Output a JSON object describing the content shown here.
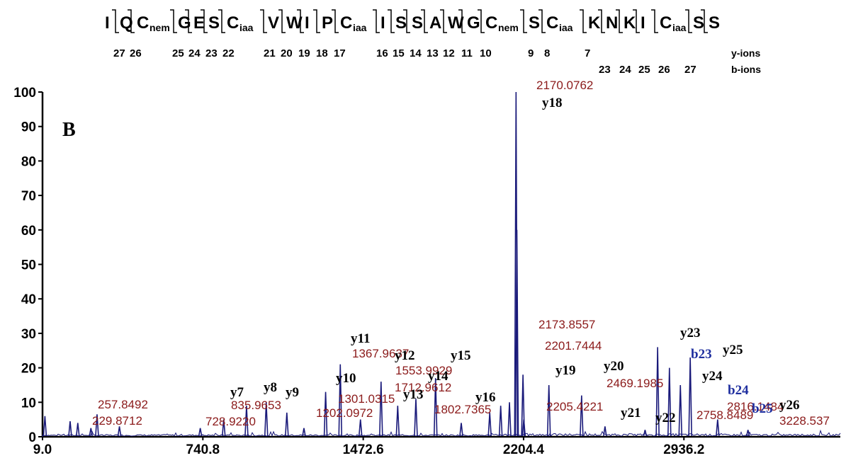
{
  "sequence": {
    "residues": [
      {
        "aa": "I",
        "sub": ""
      },
      {
        "aa": "Q",
        "sub": ""
      },
      {
        "aa": "C",
        "sub": "nem"
      },
      {
        "aa": "G",
        "sub": ""
      },
      {
        "aa": "E",
        "sub": ""
      },
      {
        "aa": "S",
        "sub": ""
      },
      {
        "aa": "C",
        "sub": "iaa"
      },
      {
        "aa": "V",
        "sub": ""
      },
      {
        "aa": "W",
        "sub": ""
      },
      {
        "aa": "I",
        "sub": ""
      },
      {
        "aa": "P",
        "sub": ""
      },
      {
        "aa": "C",
        "sub": "iaa"
      },
      {
        "aa": "I",
        "sub": ""
      },
      {
        "aa": "S",
        "sub": ""
      },
      {
        "aa": "S",
        "sub": ""
      },
      {
        "aa": "A",
        "sub": ""
      },
      {
        "aa": "W",
        "sub": ""
      },
      {
        "aa": "G",
        "sub": ""
      },
      {
        "aa": "C",
        "sub": "nem"
      },
      {
        "aa": "S",
        "sub": ""
      },
      {
        "aa": "C",
        "sub": "iaa"
      },
      {
        "aa": "K",
        "sub": ""
      },
      {
        "aa": "N",
        "sub": ""
      },
      {
        "aa": "K",
        "sub": ""
      },
      {
        "aa": "I",
        "sub": ""
      },
      {
        "aa": "C",
        "sub": "iaa"
      },
      {
        "aa": "S",
        "sub": ""
      },
      {
        "aa": "S",
        "sub": ""
      }
    ],
    "y_ion_numbers": [
      "27",
      "26",
      "25",
      "24",
      "23",
      "22",
      "21",
      "20",
      "19",
      "18",
      "17",
      "16",
      "15",
      "14",
      "13",
      "12",
      "11",
      "10",
      "9",
      "8",
      "7"
    ],
    "b_ion_numbers": [
      "23",
      "24",
      "25",
      "26",
      "27"
    ],
    "y_ions_label": "y-ions",
    "b_ions_label": "b-ions"
  },
  "chart_data": {
    "type": "line",
    "panel_label": "B",
    "xlim": [
      9.0,
      3650
    ],
    "ylim": [
      0,
      100
    ],
    "x_ticks": [
      "9.0",
      "740.8",
      "1472.6",
      "2204.4",
      "2936.2"
    ],
    "y_ticks": [
      "0",
      "10",
      "20",
      "30",
      "40",
      "50",
      "60",
      "70",
      "80",
      "90",
      "100"
    ],
    "line_color": "#1a1a7a",
    "mz_label_color": "#8b1a1a",
    "y_ion_color": "#000000",
    "b_ion_color": "#1f2f9f",
    "peaks": [
      {
        "x": 20,
        "y": 6
      },
      {
        "x": 135,
        "y": 4.5
      },
      {
        "x": 170,
        "y": 4
      },
      {
        "x": 229.8712,
        "y": 2.5
      },
      {
        "x": 257.8492,
        "y": 6.5
      },
      {
        "x": 360,
        "y": 3
      },
      {
        "x": 728.922,
        "y": 2.5
      },
      {
        "x": 835.9653,
        "y": 5
      },
      {
        "x": 940,
        "y": 9
      },
      {
        "x": 1030,
        "y": 10
      },
      {
        "x": 1124,
        "y": 7
      },
      {
        "x": 1202.0972,
        "y": 2.5
      },
      {
        "x": 1301.0315,
        "y": 13
      },
      {
        "x": 1367.9637,
        "y": 21
      },
      {
        "x": 1460,
        "y": 5
      },
      {
        "x": 1553.9929,
        "y": 16
      },
      {
        "x": 1630,
        "y": 9
      },
      {
        "x": 1712.9612,
        "y": 11
      },
      {
        "x": 1802.7365,
        "y": 17
      },
      {
        "x": 1920,
        "y": 4
      },
      {
        "x": 2050,
        "y": 7
      },
      {
        "x": 2100,
        "y": 9
      },
      {
        "x": 2140,
        "y": 10
      },
      {
        "x": 2170.0762,
        "y": 100
      },
      {
        "x": 2173.8557,
        "y": 60
      },
      {
        "x": 2201.7444,
        "y": 18
      },
      {
        "x": 2205.4221,
        "y": 5
      },
      {
        "x": 2320,
        "y": 15
      },
      {
        "x": 2469.1985,
        "y": 12
      },
      {
        "x": 2576,
        "y": 3
      },
      {
        "x": 2758.8489,
        "y": 2
      },
      {
        "x": 2816.1484,
        "y": 26
      },
      {
        "x": 2870,
        "y": 20
      },
      {
        "x": 2920,
        "y": 15
      },
      {
        "x": 2965,
        "y": 23
      },
      {
        "x": 3090,
        "y": 5
      },
      {
        "x": 3228.537,
        "y": 2
      }
    ],
    "mz_labels": [
      "257.8492",
      "229.8712",
      "728.9220",
      "835.9653",
      "1202.0972",
      "1301.0315",
      "1367.9637",
      "1553.9929",
      "1712.9612",
      "1802.7365",
      "2170.0762",
      "2173.8557",
      "2201.7444",
      "2205.4221",
      "2469.1985",
      "2758.8489",
      "2816.1484",
      "3228.537"
    ],
    "ion_annotations": [
      {
        "label": "y7",
        "kind": "y"
      },
      {
        "label": "y8",
        "kind": "y"
      },
      {
        "label": "y9",
        "kind": "y"
      },
      {
        "label": "y10",
        "kind": "y"
      },
      {
        "label": "y11",
        "kind": "y"
      },
      {
        "label": "y12",
        "kind": "y"
      },
      {
        "label": "y13",
        "kind": "y"
      },
      {
        "label": "y14",
        "kind": "y"
      },
      {
        "label": "y15",
        "kind": "y"
      },
      {
        "label": "y16",
        "kind": "y"
      },
      {
        "label": "y18",
        "kind": "y"
      },
      {
        "label": "y19",
        "kind": "y"
      },
      {
        "label": "y20",
        "kind": "y"
      },
      {
        "label": "y21",
        "kind": "y"
      },
      {
        "label": "y22",
        "kind": "y"
      },
      {
        "label": "y23",
        "kind": "y"
      },
      {
        "label": "b23",
        "kind": "b"
      },
      {
        "label": "y24",
        "kind": "y"
      },
      {
        "label": "y25",
        "kind": "y"
      },
      {
        "label": "b24",
        "kind": "b"
      },
      {
        "label": "b25",
        "kind": "b"
      },
      {
        "label": "y26",
        "kind": "y"
      }
    ]
  }
}
